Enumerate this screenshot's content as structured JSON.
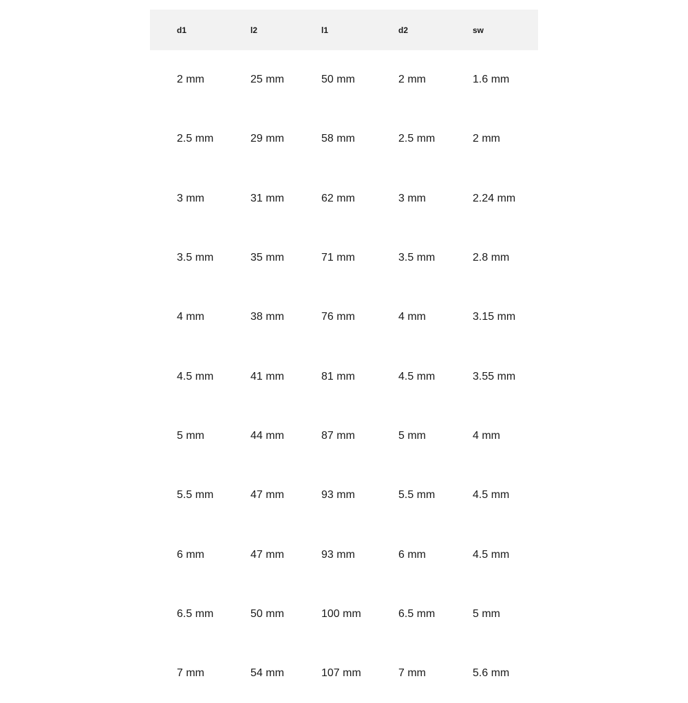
{
  "table": {
    "headers": [
      "d1",
      "l2",
      "l1",
      "d2",
      "sw"
    ],
    "rows": [
      [
        "2 mm",
        "25 mm",
        "50 mm",
        "2 mm",
        "1.6 mm"
      ],
      [
        "2.5 mm",
        "29 mm",
        "58 mm",
        "2.5 mm",
        "2 mm"
      ],
      [
        "3 mm",
        "31 mm",
        "62 mm",
        "3 mm",
        "2.24 mm"
      ],
      [
        "3.5 mm",
        "35 mm",
        "71 mm",
        "3.5 mm",
        "2.8 mm"
      ],
      [
        "4 mm",
        "38 mm",
        "76 mm",
        "4 mm",
        "3.15 mm"
      ],
      [
        "4.5 mm",
        "41 mm",
        "81 mm",
        "4.5 mm",
        "3.55 mm"
      ],
      [
        "5 mm",
        "44 mm",
        "87 mm",
        "5 mm",
        "4 mm"
      ],
      [
        "5.5 mm",
        "47 mm",
        "93 mm",
        "5.5 mm",
        "4.5 mm"
      ],
      [
        "6 mm",
        "47 mm",
        "93 mm",
        "6 mm",
        "4.5 mm"
      ],
      [
        "6.5 mm",
        "50 mm",
        "100 mm",
        "6.5 mm",
        "5 mm"
      ],
      [
        "7 mm",
        "54 mm",
        "107 mm",
        "7 mm",
        "5.6 mm"
      ]
    ]
  }
}
